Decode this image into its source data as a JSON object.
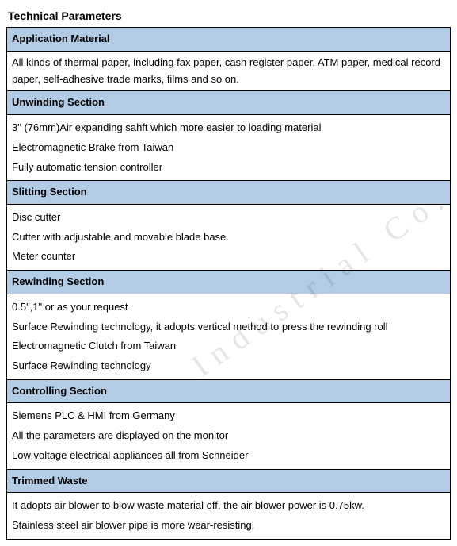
{
  "title": "Technical Parameters",
  "watermark_text": "Industrial Co.",
  "colors": {
    "header_bg": "#b3cce6",
    "border": "#000000",
    "text": "#000000",
    "background": "#ffffff",
    "watermark": "rgba(0,0,0,0.10)"
  },
  "typography": {
    "body_fontsize": 13,
    "title_fontsize": 14,
    "font_family": "Arial, sans-serif"
  },
  "sections": [
    {
      "header": "Application Material",
      "rows": [
        "All kinds of thermal paper, including fax paper, cash register paper, ATM paper, medical record paper, self-adhesive trade marks, films and so on."
      ]
    },
    {
      "header": "Unwinding Section",
      "rows": [
        "3\" (76mm)Air expanding sahft which more easier to loading material\nElectromagnetic Brake from Taiwan\nFully automatic tension controller"
      ]
    },
    {
      "header": "Slitting Section",
      "rows": [
        "Disc cutter\nCutter with adjustable and movable blade base.\nMeter counter"
      ]
    },
    {
      "header": "Rewinding Section",
      "rows": [
        "0.5\",1\" or as your request\nSurface Rewinding technology, it adopts vertical method to press the rewinding roll\nElectromagnetic Clutch from Taiwan\nSurface Rewinding technology"
      ]
    },
    {
      "header": "Controlling Section",
      "rows": [
        "Siemens PLC & HMI from Germany\nAll the parameters are displayed on the monitor\nLow voltage electrical appliances all from Schneider"
      ]
    },
    {
      "header": "Trimmed Waste",
      "rows": [
        "It adopts air blower to blow waste material off, the air blower power is 0.75kw.\nStainless steel air blower pipe is more wear-resisting."
      ]
    }
  ]
}
